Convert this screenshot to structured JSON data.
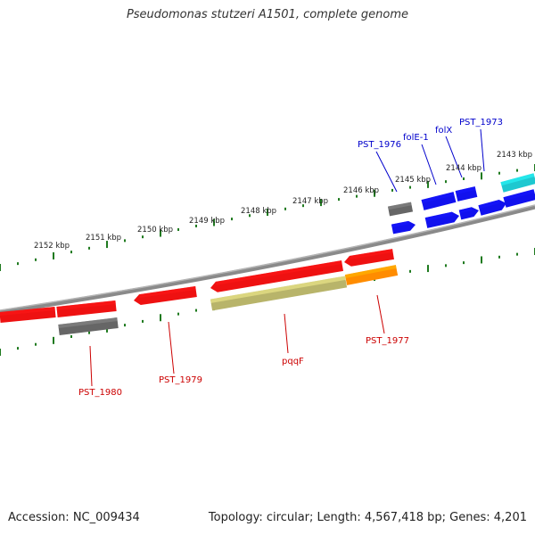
{
  "title": "Pseudomonas stutzeri A1501, complete genome",
  "footer": {
    "accession": "Accession: NC_009434",
    "summary": "Topology: circular; Length: 4,567,418 bp; Genes: 4,201"
  },
  "colors": {
    "backbone": "#8a8a8a",
    "tick": "#1f7a1f",
    "gene_red": "#ee1111",
    "gene_blue": "#1111ee",
    "gene_gray": "#666666",
    "gene_olive": "#b8b46a",
    "gene_orange": "#ff8c00",
    "gene_cyan": "#1ec8d0",
    "label_red": "#cc0000",
    "label_blue": "#0000cc"
  },
  "scale_labels": [
    {
      "id": "2152",
      "text": "2152 kbp"
    },
    {
      "id": "2151",
      "text": "2151 kbp"
    },
    {
      "id": "2150",
      "text": "2150 kbp"
    },
    {
      "id": "2149",
      "text": "2149 kbp"
    },
    {
      "id": "2148",
      "text": "2148 kbp"
    },
    {
      "id": "2147",
      "text": "2147 kbp"
    },
    {
      "id": "2146",
      "text": "2146 kbp"
    },
    {
      "id": "2145",
      "text": "2145 kbp"
    },
    {
      "id": "2144",
      "text": "2144 kbp"
    },
    {
      "id": "2143",
      "text": "2143 kbp"
    }
  ],
  "gene_labels": [
    {
      "id": "pst1976",
      "text": "PST_1976",
      "color": "blue"
    },
    {
      "id": "folE1",
      "text": "folE-1",
      "color": "blue"
    },
    {
      "id": "folX",
      "text": "folX",
      "color": "blue"
    },
    {
      "id": "pst1973",
      "text": "PST_1973",
      "color": "blue"
    },
    {
      "id": "pst1980",
      "text": "PST_1980",
      "color": "red"
    },
    {
      "id": "pst1979",
      "text": "PST_1979",
      "color": "red"
    },
    {
      "id": "pqqF",
      "text": "pqqF",
      "color": "red"
    },
    {
      "id": "pst1977",
      "text": "PST_1977",
      "color": "red"
    }
  ]
}
